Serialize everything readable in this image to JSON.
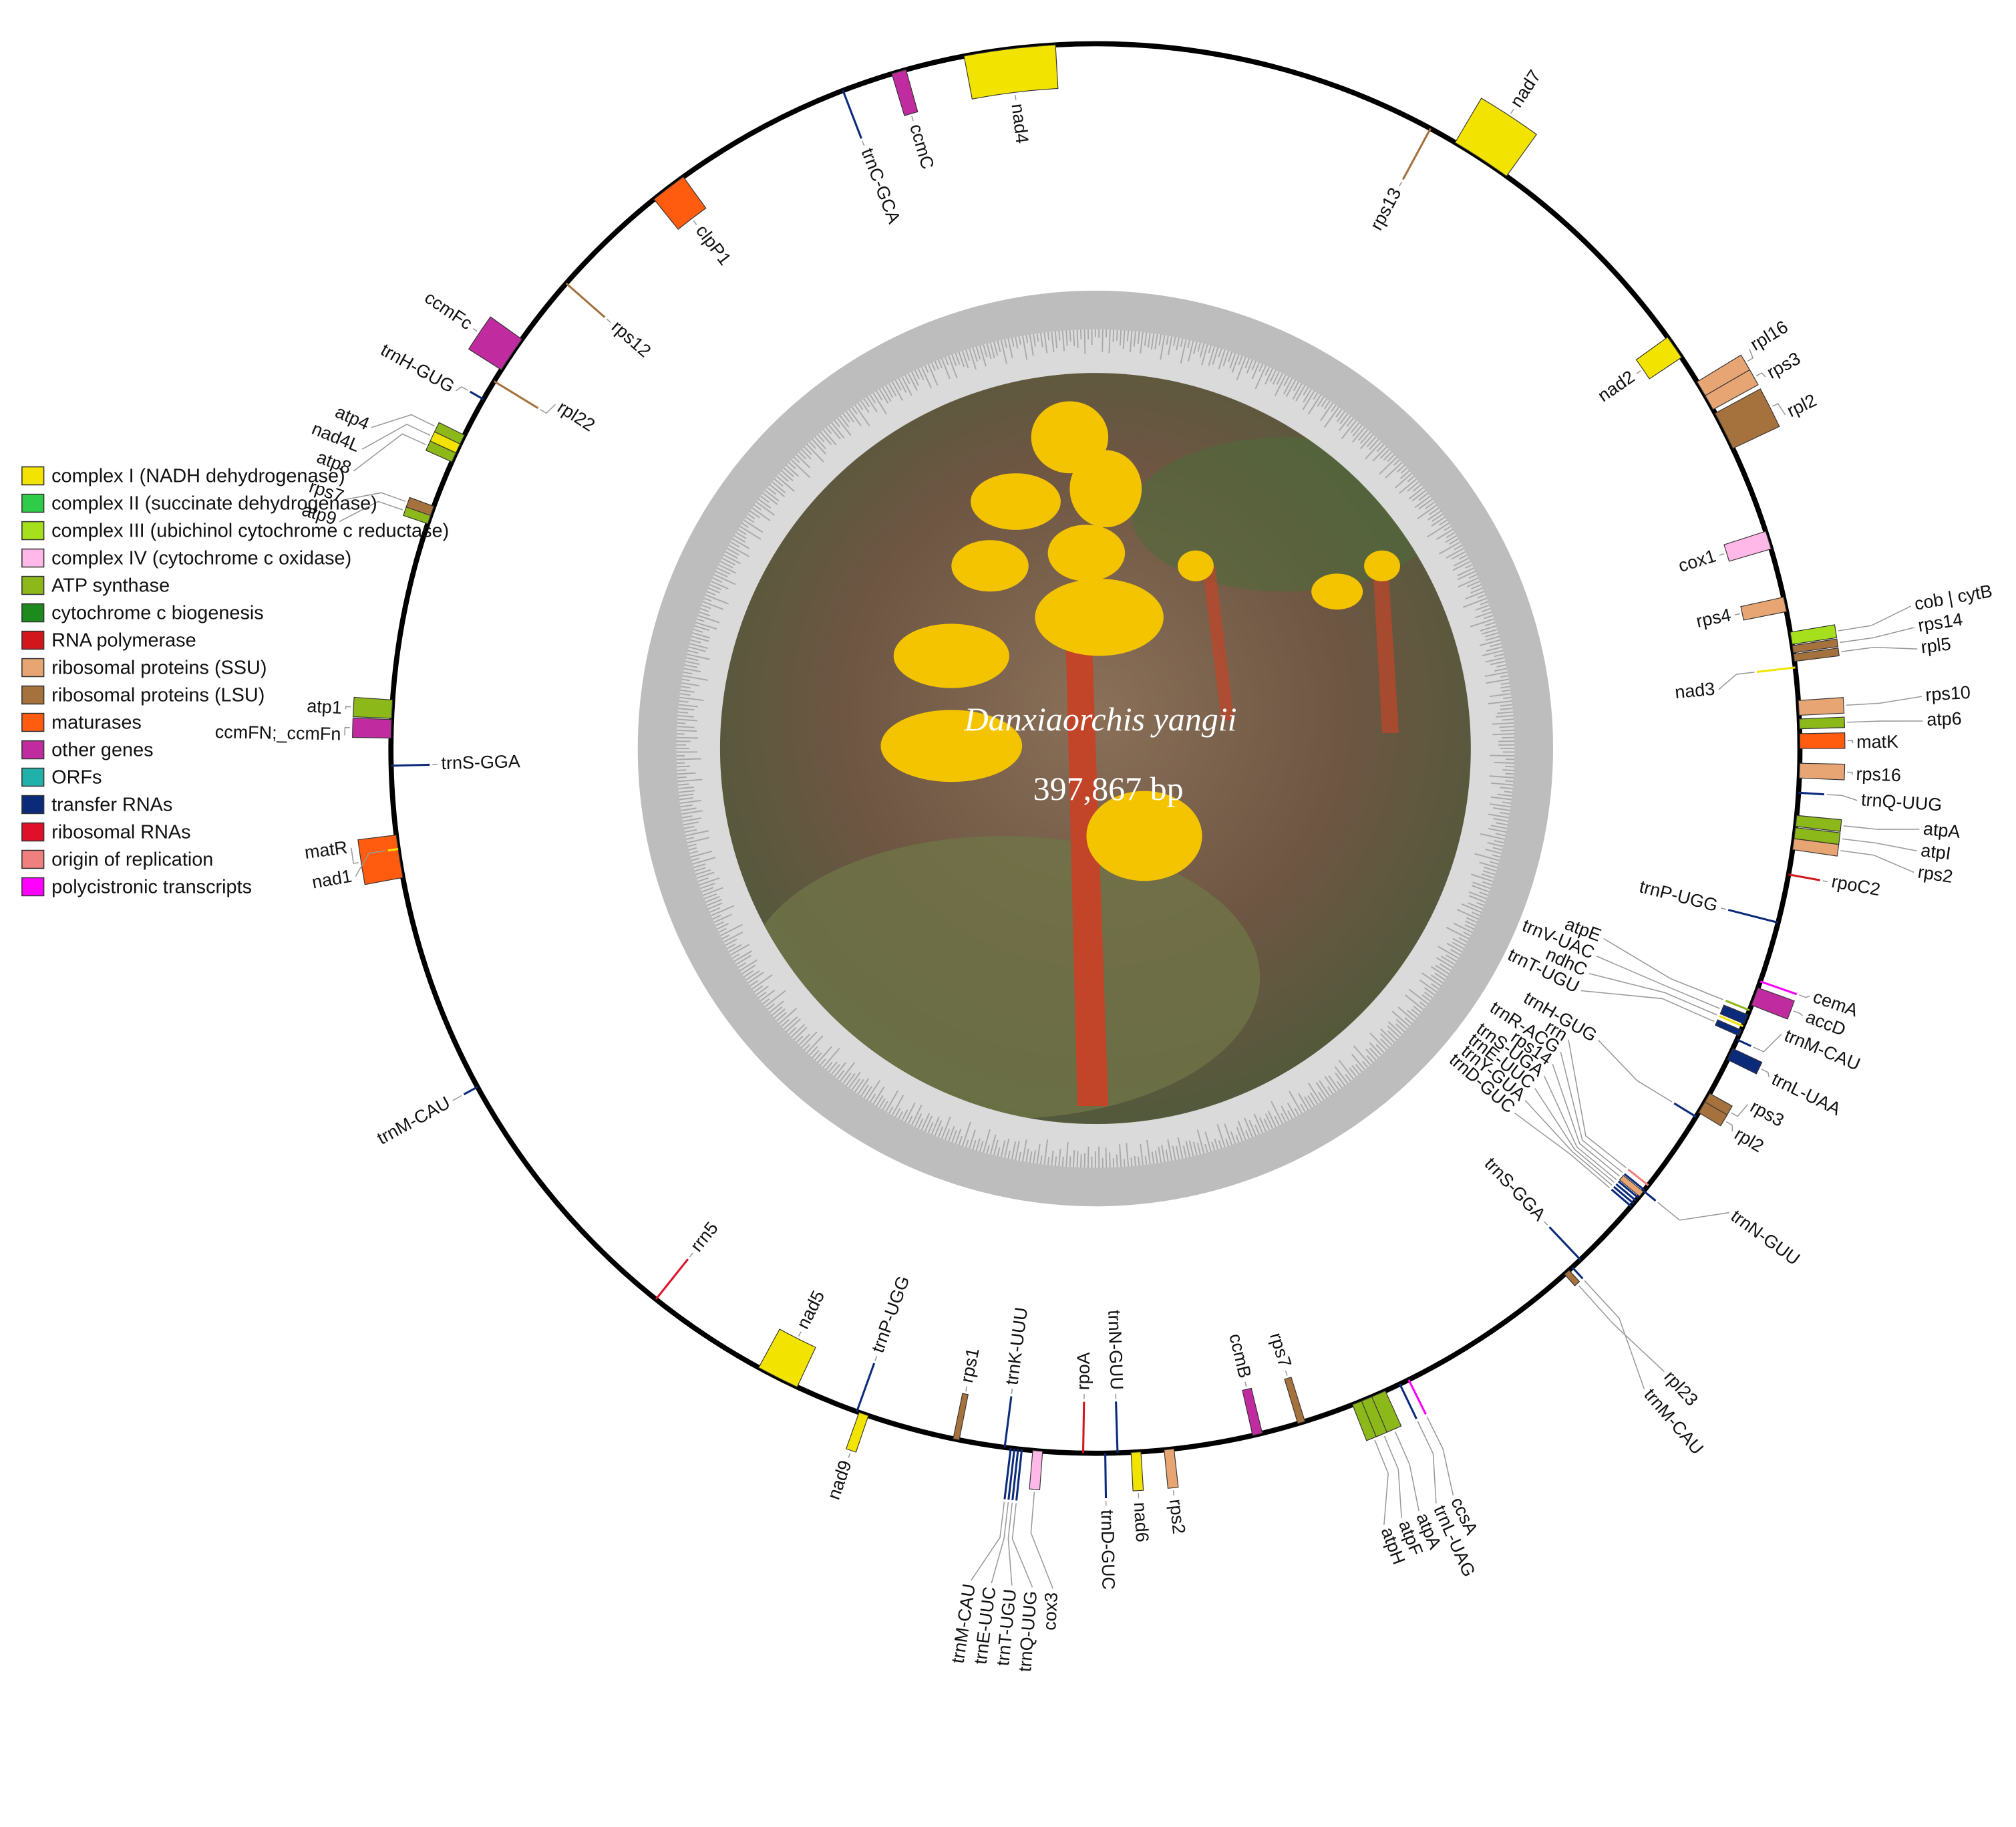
{
  "title": "Danxiaorchis yangii",
  "length": "397,867 bp",
  "legend": [
    {
      "label": "complex I (NADH dehydrogenase)",
      "color": "#f2e400"
    },
    {
      "label": "complex II (succinate dehydrogenase)",
      "color": "#2fcc4a"
    },
    {
      "label": "complex III (ubichinol cytochrome c reductase)",
      "color": "#a6e01d"
    },
    {
      "label": "complex IV (cytochrome c oxidase)",
      "color": "#ffb8e8"
    },
    {
      "label": "ATP synthase",
      "color": "#8cb81a"
    },
    {
      "label": "cytochrome c biogenesis",
      "color": "#1d8a1d"
    },
    {
      "label": "RNA polymerase",
      "color": "#d3161c"
    },
    {
      "label": "ribosomal proteins (SSU)",
      "color": "#e8a574"
    },
    {
      "label": "ribosomal proteins (LSU)",
      "color": "#a5713d"
    },
    {
      "label": "maturases",
      "color": "#ff5c10"
    },
    {
      "label": "other genes",
      "color": "#c02ca0"
    },
    {
      "label": "ORFs",
      "color": "#20b2aa"
    },
    {
      "label": "transfer RNAs",
      "color": "#0b2a7a"
    },
    {
      "label": "ribosomal RNAs",
      "color": "#e0102a"
    },
    {
      "label": "origin of replication",
      "color": "#f08080"
    },
    {
      "label": "polycistronic transcripts",
      "color": "#ff00ff"
    }
  ],
  "genes": [
    {
      "label": "nad4",
      "color": "#f2e400"
    },
    {
      "label": "ccmC",
      "color": "#c02ca0"
    },
    {
      "label": "trnC-GCA",
      "color": "#0b2a7a"
    },
    {
      "label": "clpP1",
      "color": "#ff5c10"
    },
    {
      "label": "rps12",
      "color": "#a5713d"
    },
    {
      "label": "ccmFc",
      "color": "#c02ca0"
    },
    {
      "label": "trnH-GUG",
      "color": "#0b2a7a"
    },
    {
      "label": "rpl22",
      "color": "#a5713d"
    },
    {
      "label": "atp8",
      "color": "#8cb81a"
    },
    {
      "label": "nad4L",
      "color": "#f2e400"
    },
    {
      "label": "atp4",
      "color": "#8cb81a"
    },
    {
      "label": "atp9",
      "color": "#8cb81a"
    },
    {
      "label": "rps7",
      "color": "#a5713d"
    },
    {
      "label": "atp1",
      "color": "#8cb81a"
    },
    {
      "label": "ccmFN;_ccmFn",
      "color": "#c02ca0"
    },
    {
      "label": "trnS-GGA",
      "color": "#0b2a7a"
    },
    {
      "label": "matR",
      "color": "#ff5c10"
    },
    {
      "label": "nad1",
      "color": "#f2e400"
    },
    {
      "label": "trnM-CAU",
      "color": "#0b2a7a"
    },
    {
      "label": "rrn5",
      "color": "#e0102a"
    },
    {
      "label": "nad5",
      "color": "#f2e400"
    },
    {
      "label": "trnP-UGG",
      "color": "#0b2a7a"
    },
    {
      "label": "nad9",
      "color": "#f2e400"
    },
    {
      "label": "rps1",
      "color": "#a5713d"
    },
    {
      "label": "trnK-UUU",
      "color": "#0b2a7a"
    },
    {
      "label": "trnM-CAU",
      "color": "#0b2a7a"
    },
    {
      "label": "trnE-UUC",
      "color": "#0b2a7a"
    },
    {
      "label": "trnT-UGU",
      "color": "#0b2a7a"
    },
    {
      "label": "trnQ-UUG",
      "color": "#0b2a7a"
    },
    {
      "label": "cox3",
      "color": "#ffb8e8"
    },
    {
      "label": "rpoA",
      "color": "#d3161c"
    },
    {
      "label": "trnN-GUU",
      "color": "#0b2a7a"
    },
    {
      "label": "trnD-GUC",
      "color": "#0b2a7a"
    },
    {
      "label": "nad6",
      "color": "#f2e400"
    },
    {
      "label": "rps2",
      "color": "#e8a574"
    },
    {
      "label": "ccmB",
      "color": "#c02ca0"
    },
    {
      "label": "rps7",
      "color": "#a5713d"
    },
    {
      "label": "atpH",
      "color": "#8cb81a"
    },
    {
      "label": "atpF",
      "color": "#8cb81a"
    },
    {
      "label": "atpA",
      "color": "#8cb81a"
    },
    {
      "label": "trnL-UAG",
      "color": "#0b2a7a"
    },
    {
      "label": "ccsA",
      "color": "#ff00ff"
    },
    {
      "label": "trnS-GGA",
      "color": "#0b2a7a"
    },
    {
      "label": "rpl23",
      "color": "#a5713d"
    },
    {
      "label": "trnM-CAU",
      "color": "#0b2a7a"
    },
    {
      "label": "trnN-GUU",
      "color": "#0b2a7a"
    },
    {
      "label": "trnD-GUC",
      "color": "#0b2a7a"
    },
    {
      "label": "trnY-GUA",
      "color": "#0b2a7a"
    },
    {
      "label": "trnE-UUC",
      "color": "#0b2a7a"
    },
    {
      "label": "trnS-UGA",
      "color": "#0b2a7a"
    },
    {
      "label": "rps14",
      "color": "#e8a574"
    },
    {
      "label": "trnR-ACG",
      "color": "#0b2a7a"
    },
    {
      "label": "rrn",
      "color": "#f08080"
    },
    {
      "label": "trnH-GUG",
      "color": "#0b2a7a"
    },
    {
      "label": "rps3",
      "color": "#a5713d"
    },
    {
      "label": "rpl2",
      "color": "#a5713d"
    },
    {
      "label": "trnL-UAA",
      "color": "#0b2a7a"
    },
    {
      "label": "trnM-CAU",
      "color": "#0b2a7a"
    },
    {
      "label": "accD",
      "color": "#c02ca0"
    },
    {
      "label": "cemA",
      "color": "#ff00ff"
    },
    {
      "label": "atpE",
      "color": "#8cb81a"
    },
    {
      "label": "trnV-UAC",
      "color": "#0b2a7a"
    },
    {
      "label": "ndhC",
      "color": "#f2e400"
    },
    {
      "label": "trnT-UGU",
      "color": "#0b2a7a"
    },
    {
      "label": "trnP-UGG",
      "color": "#0b2a7a"
    },
    {
      "label": "rpoC2",
      "color": "#d3161c"
    },
    {
      "label": "rps2",
      "color": "#e8a574"
    },
    {
      "label": "atpI",
      "color": "#8cb81a"
    },
    {
      "label": "atpA",
      "color": "#8cb81a"
    },
    {
      "label": "trnQ-UUG",
      "color": "#0b2a7a"
    },
    {
      "label": "rps16",
      "color": "#e8a574"
    },
    {
      "label": "matK",
      "color": "#ff5c10"
    },
    {
      "label": "atp6",
      "color": "#8cb81a"
    },
    {
      "label": "rps10",
      "color": "#e8a574"
    },
    {
      "label": "nad3",
      "color": "#f2e400"
    },
    {
      "label": "rpl5",
      "color": "#a5713d"
    },
    {
      "label": "rps14",
      "color": "#a5713d"
    },
    {
      "label": "cob | cytB",
      "color": "#a6e01d"
    },
    {
      "label": "rps4",
      "color": "#e8a574"
    },
    {
      "label": "cox1",
      "color": "#ffb8e8"
    },
    {
      "label": "rpl16",
      "color": "#e8a574"
    },
    {
      "label": "rps3",
      "color": "#e8a574"
    },
    {
      "label": "rpl2",
      "color": "#a5713d"
    },
    {
      "label": "nad2",
      "color": "#f2e400"
    },
    {
      "label": "rps13",
      "color": "#a5713d"
    },
    {
      "label": "nad7",
      "color": "#f2e400"
    }
  ]
}
